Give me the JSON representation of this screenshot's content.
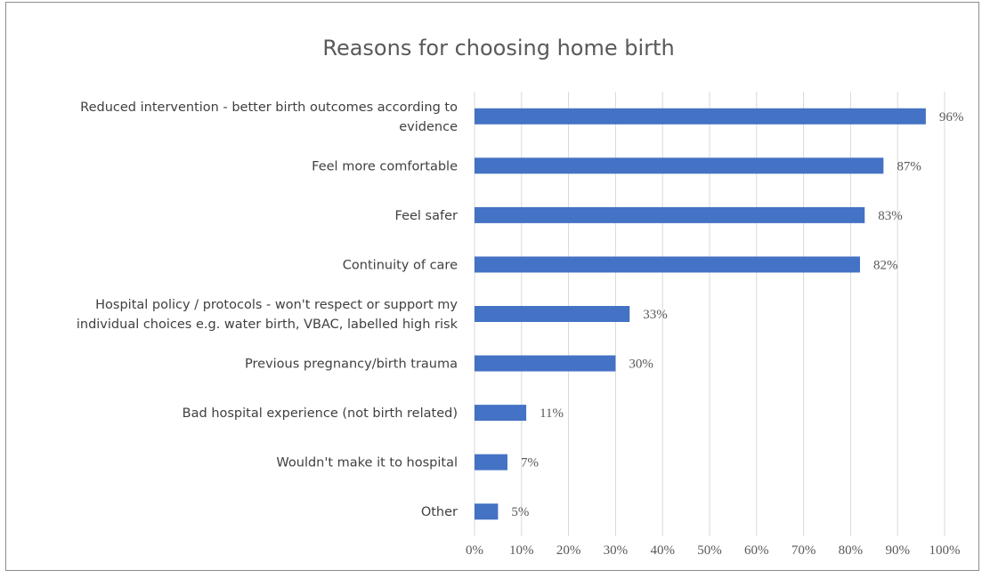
{
  "chart_data": {
    "type": "bar",
    "orientation": "horizontal",
    "title": "Reasons for choosing home birth",
    "xlabel": "",
    "ylabel": "",
    "xlim": [
      0,
      100
    ],
    "grid": true,
    "legend": "none",
    "bar_color": "#4472c4",
    "categories": [
      [
        "Reduced intervention - better birth outcomes according to",
        "evidence"
      ],
      [
        "Feel more comfortable"
      ],
      [
        "Feel safer"
      ],
      [
        "Continuity of care"
      ],
      [
        "Hospital policy / protocols - won't respect or support my",
        "individual choices e.g. water birth, VBAC, labelled high risk"
      ],
      [
        "Previous pregnancy/birth trauma"
      ],
      [
        "Bad hospital experience (not birth related)"
      ],
      [
        "Wouldn't make it to hospital"
      ],
      [
        "Other"
      ]
    ],
    "values": [
      96,
      87,
      83,
      82,
      33,
      30,
      11,
      7,
      5
    ],
    "data_labels": [
      "96%",
      "87%",
      "83%",
      "82%",
      "33%",
      "30%",
      "11%",
      "7%",
      "5%"
    ],
    "x_ticks": [
      "0%",
      "10%",
      "20%",
      "30%",
      "40%",
      "50%",
      "60%",
      "70%",
      "80%",
      "90%",
      "100%"
    ]
  }
}
